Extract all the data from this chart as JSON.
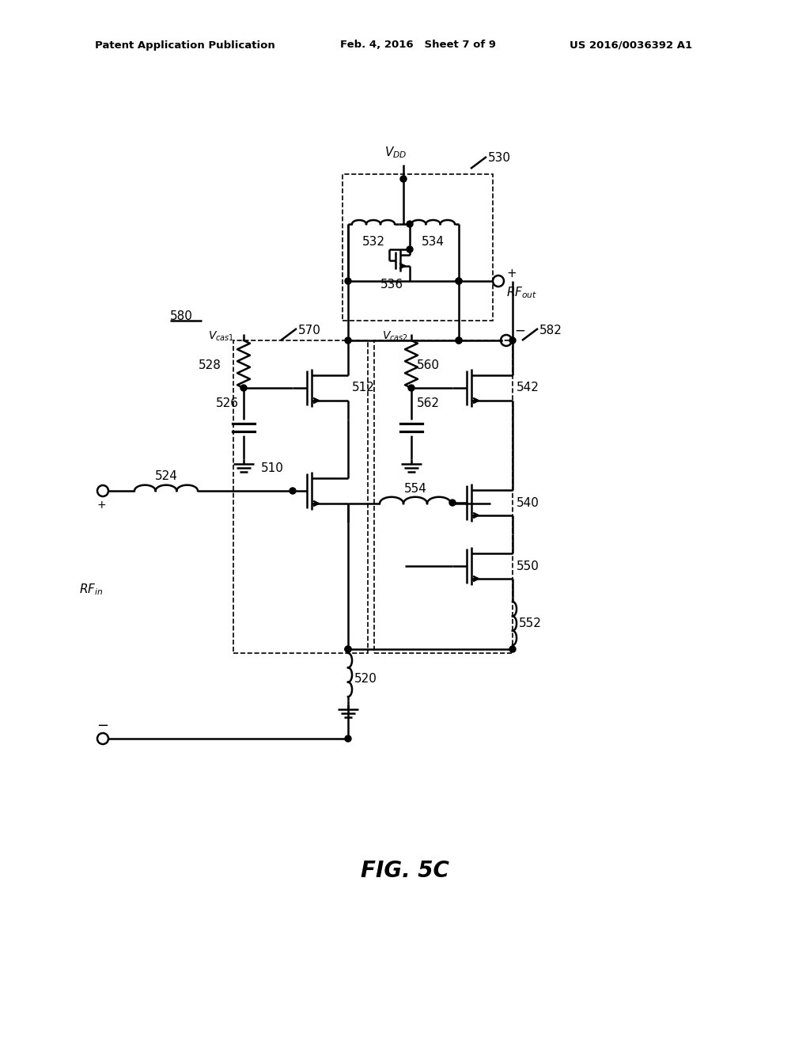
{
  "bg_color": "#ffffff",
  "line_color": "#000000",
  "lw": 1.8,
  "header_left": "Patent Application Publication",
  "header_mid": "Feb. 4, 2016   Sheet 7 of 9",
  "header_right": "US 2016/0036392 A1",
  "fig_label": "FIG. 5C"
}
